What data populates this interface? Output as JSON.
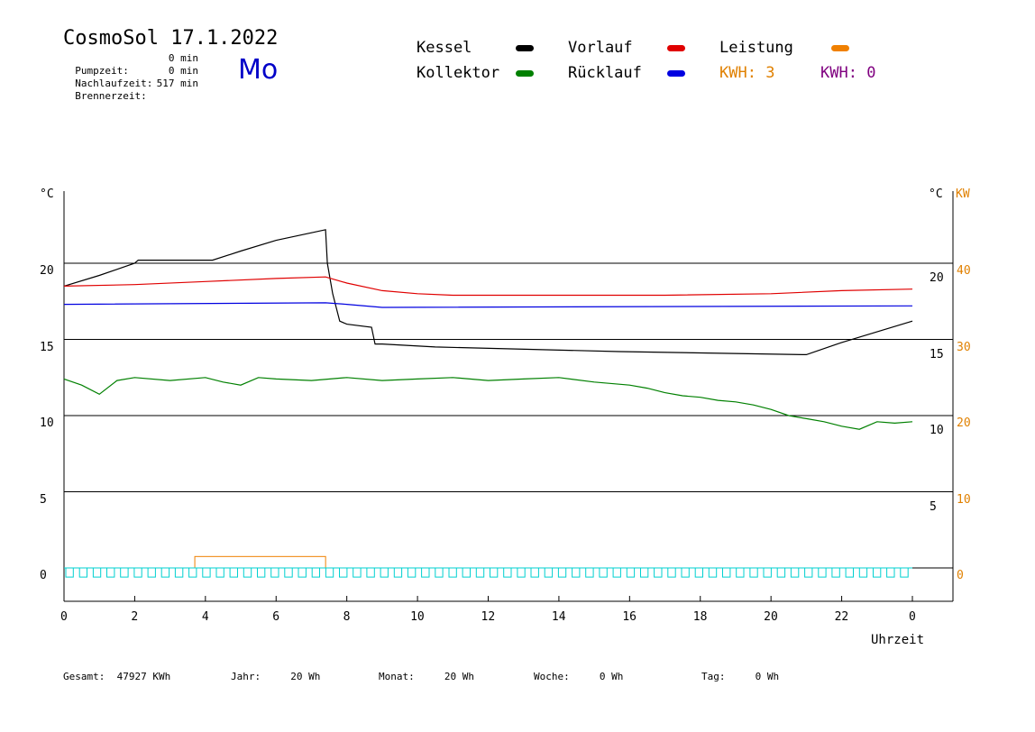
{
  "header": {
    "title": "CosmoSol 17.1.2022",
    "day": "Mo",
    "info": [
      {
        "label": "Pumpzeit:",
        "value": "0 min"
      },
      {
        "label": "Nachlaufzeit:",
        "value": "0 min"
      },
      {
        "label": "Brennerzeit:",
        "value": "517 min"
      }
    ]
  },
  "legend": {
    "kessel": "Kessel",
    "vorlauf": "Vorlauf",
    "leistung": "Leistung",
    "kollektor": "Kollektor",
    "ruecklauf": "Rücklauf",
    "kwh1_label": "KWH:",
    "kwh1_value": "3",
    "kwh2_label": "KWH:",
    "kwh2_value": "0",
    "colors": {
      "kessel": "#000000",
      "vorlauf": "#e00000",
      "leistung": "#f08000",
      "kollektor": "#008000",
      "ruecklauf": "#0000e0",
      "kwh1": "#e08000",
      "kwh2": "#800080",
      "pump": "#00d0d0"
    }
  },
  "axes": {
    "left_unit": "°C",
    "right_unit_c": "°C",
    "right_unit_kw": "KW",
    "xlabel": "Uhrzeit",
    "left_ticks": [
      "20",
      "15",
      "10",
      "5",
      "0"
    ],
    "right_c_ticks": [
      "20",
      "15",
      "10",
      "5"
    ],
    "right_kw_ticks": [
      "40",
      "30",
      "20",
      "10",
      "0"
    ],
    "x_ticks": [
      "0",
      "2",
      "4",
      "6",
      "8",
      "10",
      "12",
      "14",
      "16",
      "18",
      "20",
      "22",
      "0"
    ]
  },
  "footer": [
    {
      "label": "Gesamt:",
      "value": "47927 KWh"
    },
    {
      "label": "Jahr:",
      "value": "20 Wh"
    },
    {
      "label": "Monat:",
      "value": "20 Wh"
    },
    {
      "label": "Woche:",
      "value": "0 Wh"
    },
    {
      "label": "Tag:",
      "value": "0 Wh"
    }
  ],
  "chart_data": {
    "type": "line",
    "xlim": [
      0,
      24
    ],
    "ylim_left": [
      -2,
      25
    ],
    "series": [
      {
        "name": "Kessel",
        "x": [
          0,
          1,
          2,
          2.1,
          4.2,
          5,
          6,
          7,
          7.4,
          7.45,
          7.6,
          7.8,
          8,
          8.7,
          8.8,
          9,
          10.5,
          15.7,
          20.9,
          21,
          22,
          23,
          24
        ],
        "y": [
          18.5,
          19.2,
          20.0,
          20.2,
          20.2,
          20.8,
          21.5,
          22.0,
          22.2,
          20.0,
          18.0,
          16.2,
          16.0,
          15.8,
          14.7,
          14.7,
          14.5,
          14.2,
          14.0,
          14.0,
          14.8,
          15.5,
          16.2
        ]
      },
      {
        "name": "Vorlauf",
        "x": [
          0,
          2,
          4,
          6,
          7.4,
          8,
          9,
          10,
          11,
          14,
          17,
          20,
          22,
          24
        ],
        "y": [
          18.5,
          18.6,
          18.8,
          19.0,
          19.1,
          18.7,
          18.2,
          18.0,
          17.9,
          17.9,
          17.9,
          18.0,
          18.2,
          18.3
        ]
      },
      {
        "name": "Rücklauf",
        "x": [
          0,
          7.4,
          8,
          9,
          24
        ],
        "y": [
          17.3,
          17.4,
          17.3,
          17.1,
          17.2
        ]
      },
      {
        "name": "Kollektor",
        "x": [
          0,
          0.5,
          1,
          1.5,
          2,
          3,
          4,
          4.5,
          5,
          5.5,
          6,
          7,
          8,
          9,
          10,
          11,
          12,
          13,
          14,
          15,
          16,
          16.5,
          17,
          17.5,
          18,
          18.5,
          19,
          19.5,
          20,
          20.5,
          21,
          21.5,
          22,
          22.5,
          23,
          23.5,
          24
        ],
        "y": [
          12.4,
          12.0,
          11.4,
          12.3,
          12.5,
          12.3,
          12.5,
          12.2,
          12.0,
          12.5,
          12.4,
          12.3,
          12.5,
          12.3,
          12.4,
          12.5,
          12.3,
          12.4,
          12.5,
          12.2,
          12.0,
          11.8,
          11.5,
          11.3,
          11.2,
          11.0,
          10.9,
          10.7,
          10.4,
          10.0,
          9.8,
          9.6,
          9.3,
          9.1,
          9.6,
          9.5,
          9.6
        ]
      }
    ],
    "pump_signal": {
      "name": "Pumpe",
      "level": [
        -0.6,
        0
      ]
    },
    "leistung": {
      "name": "Leistung",
      "x": [
        3.7,
        7.4
      ],
      "kw": 1.5
    }
  }
}
